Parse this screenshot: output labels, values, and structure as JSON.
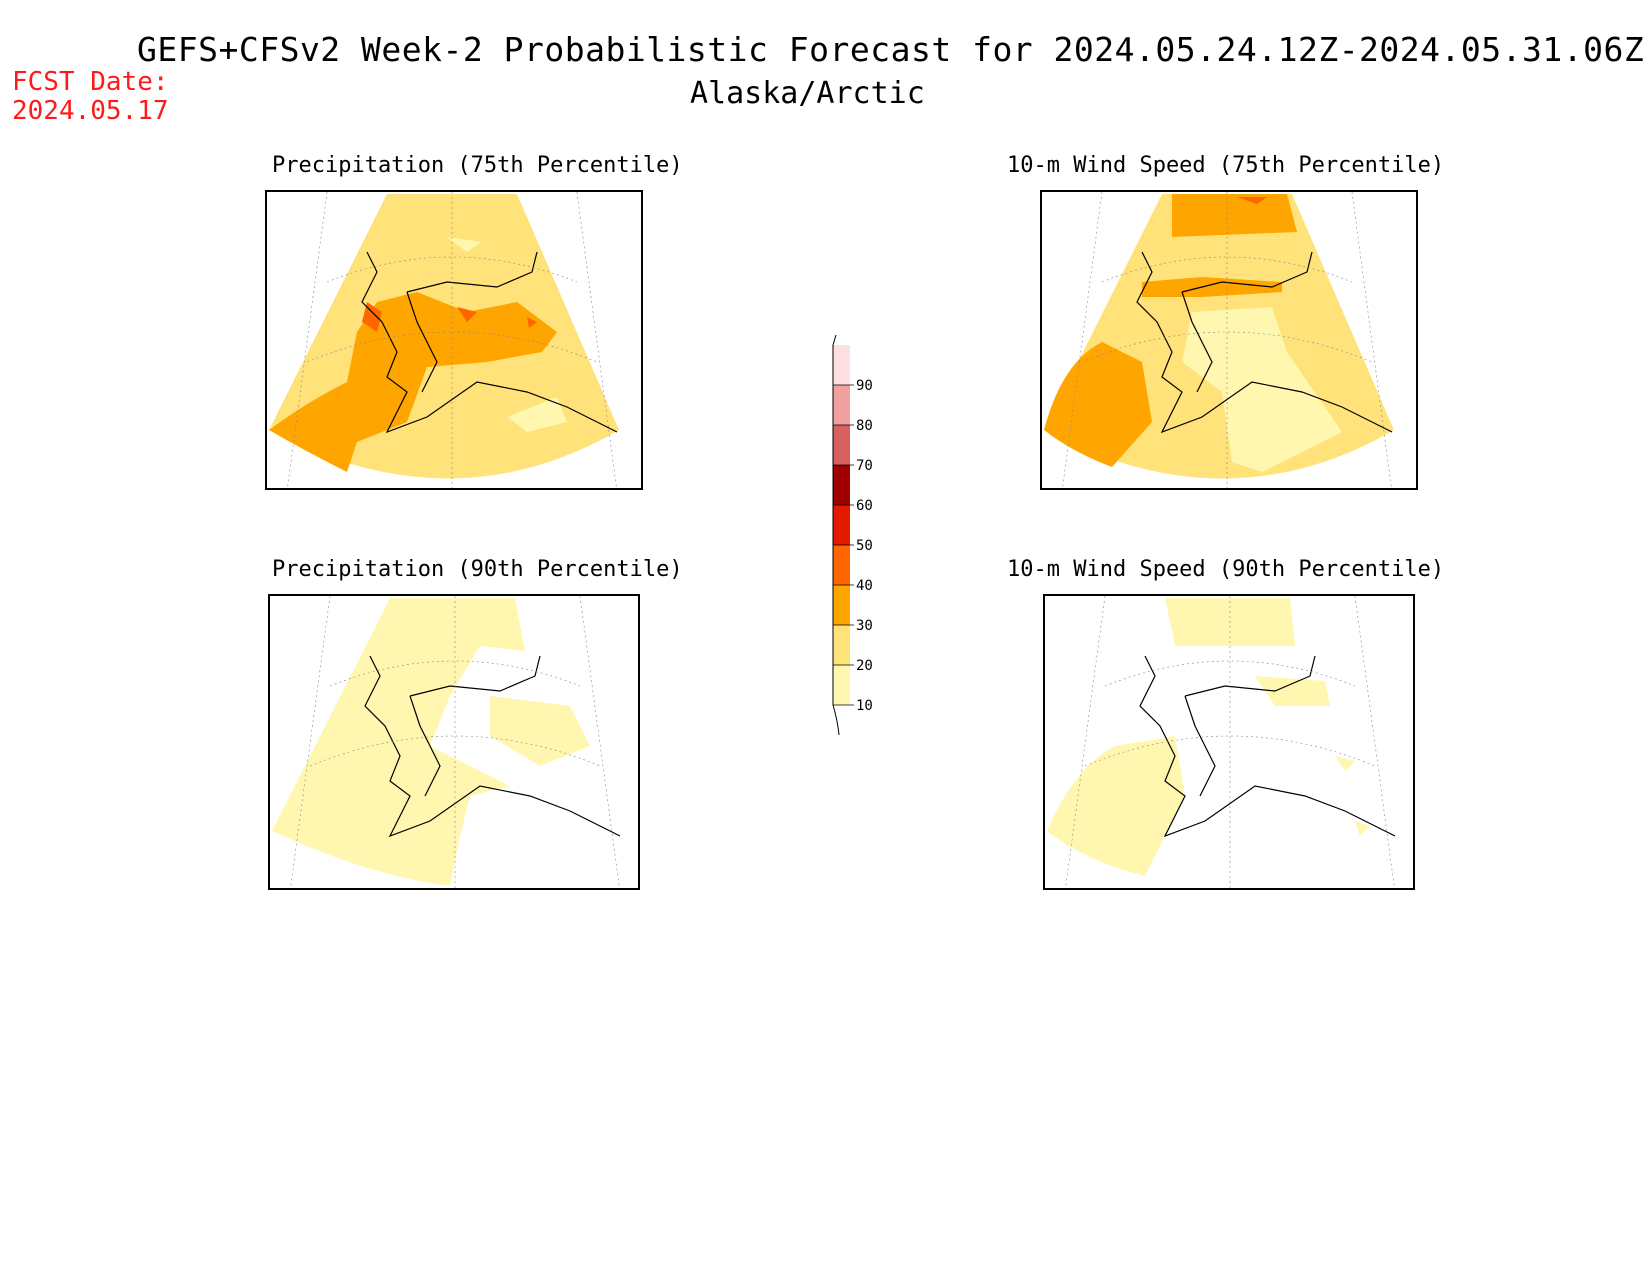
{
  "header": {
    "title": "GEFS+CFSv2 Week-2 Probabilistic Forecast for 2024.05.24.12Z-2024.05.31.06Z",
    "region": "Alaska/Arctic",
    "fcst_label": "FCST Date:",
    "fcst_date": "2024.05.17"
  },
  "panels": [
    {
      "title": "Precipitation (75th Percentile)",
      "field": "precip-75",
      "dominant_color": "#ffe27a"
    },
    {
      "title": "10-m Wind Speed (75th Percentile)",
      "field": "wind-75",
      "dominant_color": "#ffe27a"
    },
    {
      "title": "Precipitation (90th Percentile)",
      "field": "precip-90",
      "dominant_color": "#fff7b0"
    },
    {
      "title": "10-m Wind Speed (90th Percentile)",
      "field": "wind-90",
      "dominant_color": "#fff7b0"
    }
  ],
  "colorbar": {
    "levels": [
      "10",
      "20",
      "30",
      "40",
      "50",
      "60",
      "70",
      "80",
      "90"
    ],
    "colors": [
      "#fff7b0",
      "#ffe27a",
      "#ffa500",
      "#ff6600",
      "#e31a00",
      "#a00000",
      "#d96060",
      "#f2a0a0",
      "#ffe0e0"
    ]
  }
}
